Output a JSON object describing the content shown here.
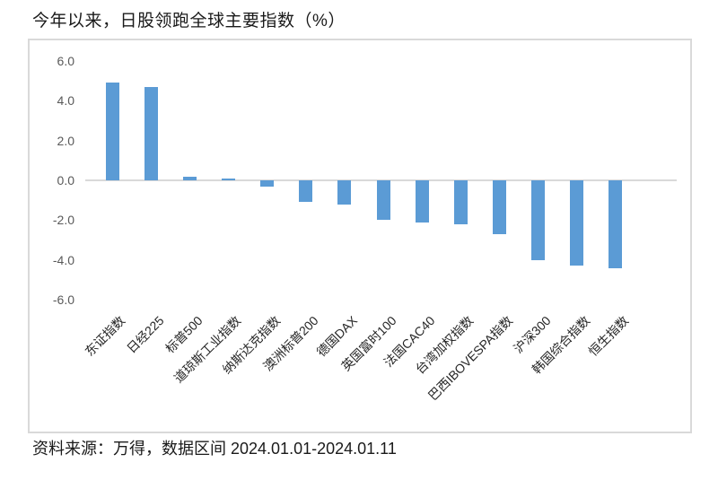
{
  "title": "今年以来，日股领跑全球主要指数（%）",
  "source_note": "资料来源：万得，数据区间 2024.01.01-2024.01.11",
  "colors": {
    "bar": "#5B9BD5",
    "axis_line": "#D9D9D9",
    "chart_border": "#D9D9D9",
    "ytick_label": "#595959",
    "category_label": "#262626"
  },
  "chart_data": {
    "type": "bar",
    "title": "今年以来，日股领跑全球主要指数（%）",
    "categories": [
      "东证指数",
      "日经225",
      "标普500",
      "道琼斯工业指数",
      "纳斯达克指数",
      "澳洲标普200",
      "德国DAX",
      "英国富时100",
      "法国CAC40",
      "台湾加权指数",
      "巴西IBOVESPA指数",
      "沪深300",
      "韩国综合指数",
      "恒生指数"
    ],
    "values": [
      4.9,
      4.7,
      0.2,
      0.1,
      -0.3,
      -1.1,
      -1.2,
      -2.0,
      -2.1,
      -2.2,
      -2.7,
      -4.0,
      -4.3,
      -4.4
    ],
    "xlabel": "",
    "ylabel": "",
    "ylim": [
      -6.0,
      6.0
    ],
    "ytick_step": 2.0,
    "ytick_labels": [
      "6.0",
      "4.0",
      "2.0",
      "0.0",
      "-2.0",
      "-4.0",
      "-6.0"
    ],
    "grid": false,
    "legend": "none",
    "bar_color": "#5B9BD5"
  }
}
